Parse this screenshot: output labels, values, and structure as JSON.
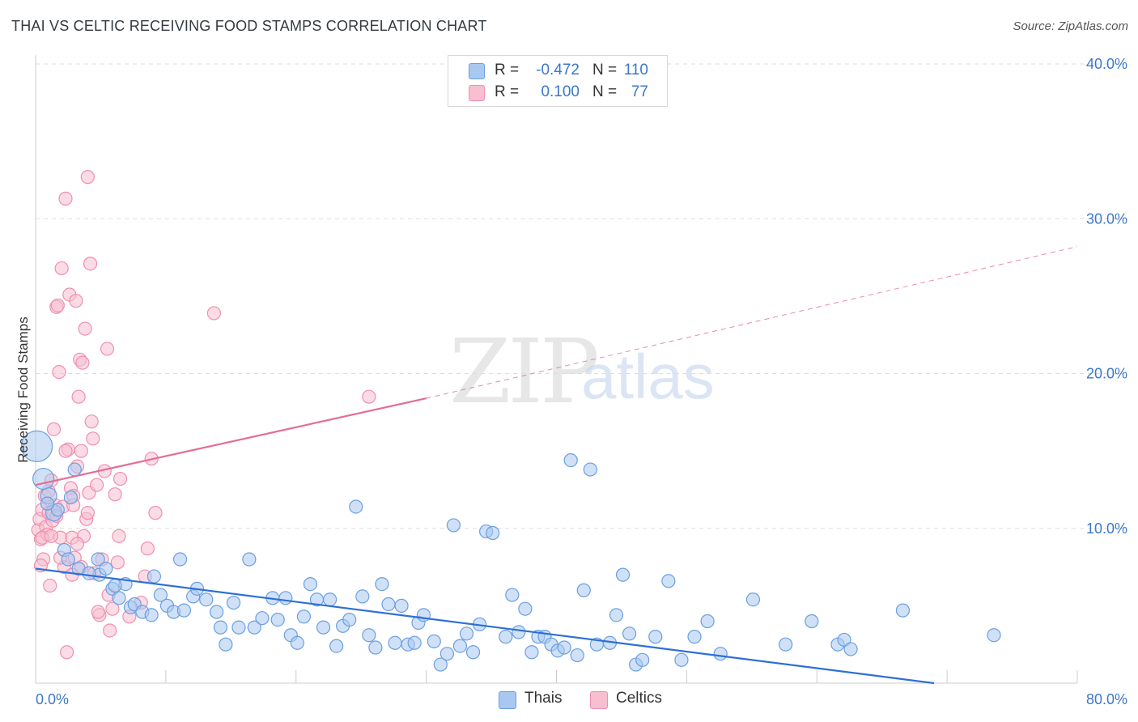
{
  "title": "THAI VS CELTIC RECEIVING FOOD STAMPS CORRELATION CHART",
  "source": "Source: ZipAtlas.com",
  "watermark": {
    "zip": "ZIP",
    "atlas": "atlas"
  },
  "legend": {
    "rows": [
      {
        "r_label": "R =",
        "r_value": "-0.472",
        "n_label": "N =",
        "n_value": "110"
      },
      {
        "r_label": "R =",
        "r_value": "0.100",
        "n_label": "N =",
        "n_value": "77"
      }
    ]
  },
  "bottom_legend": [
    "Thais",
    "Celtics"
  ],
  "colors": {
    "thais_fill": "#a9c8f0",
    "thais_stroke": "#6a9fe0",
    "thais_line": "#2e6fd6",
    "celtics_fill": "#f7bfd0",
    "celtics_stroke": "#ef8fb0",
    "celtics_line": "#e36d96",
    "tick_text": "#3b78cc",
    "grid": "#dddddd"
  },
  "chart_data": {
    "type": "scatter",
    "title": "THAI VS CELTIC RECEIVING FOOD STAMPS CORRELATION CHART",
    "xlabel": "",
    "ylabel": "Receiving Food Stamps",
    "xlim": [
      0,
      80
    ],
    "ylim": [
      0,
      40
    ],
    "x_tick_labels": [
      "0.0%",
      "80.0%"
    ],
    "y_tick_labels": [
      "10.0%",
      "20.0%",
      "30.0%",
      "40.0%"
    ],
    "y_ticks": [
      10,
      20,
      30,
      40
    ],
    "grid": true,
    "legend_position": "top-center",
    "series": [
      {
        "name": "Thais",
        "r": -0.472,
        "n": 110,
        "trend": {
          "x0": 0,
          "y0": 7.4,
          "x1": 69,
          "y1": 0.0,
          "dashed_after": null
        },
        "points": [
          [
            0.1,
            15.3
          ],
          [
            0.6,
            13.2
          ],
          [
            1.0,
            12.1
          ],
          [
            1.4,
            11.0
          ],
          [
            3.0,
            13.8
          ],
          [
            1.7,
            11.2
          ],
          [
            2.2,
            8.6
          ],
          [
            2.5,
            8.0
          ],
          [
            3.3,
            7.4
          ],
          [
            4.8,
            8.0
          ],
          [
            4.9,
            7.0
          ],
          [
            5.4,
            7.4
          ],
          [
            5.9,
            6.1
          ],
          [
            6.4,
            5.5
          ],
          [
            6.9,
            6.4
          ],
          [
            7.3,
            4.9
          ],
          [
            7.6,
            5.1
          ],
          [
            8.2,
            4.6
          ],
          [
            9.1,
            6.9
          ],
          [
            9.6,
            5.7
          ],
          [
            10.1,
            5.0
          ],
          [
            10.6,
            4.6
          ],
          [
            11.1,
            8.0
          ],
          [
            11.4,
            4.7
          ],
          [
            12.1,
            5.6
          ],
          [
            12.4,
            6.1
          ],
          [
            13.1,
            5.4
          ],
          [
            13.9,
            4.6
          ],
          [
            14.2,
            3.6
          ],
          [
            14.6,
            2.5
          ],
          [
            15.2,
            5.2
          ],
          [
            15.6,
            3.6
          ],
          [
            16.4,
            8.0
          ],
          [
            16.8,
            3.6
          ],
          [
            17.4,
            4.2
          ],
          [
            18.2,
            5.5
          ],
          [
            18.6,
            4.1
          ],
          [
            19.2,
            5.5
          ],
          [
            19.6,
            3.1
          ],
          [
            20.1,
            2.6
          ],
          [
            20.6,
            4.3
          ],
          [
            21.1,
            6.4
          ],
          [
            21.6,
            5.4
          ],
          [
            22.1,
            3.6
          ],
          [
            22.6,
            5.4
          ],
          [
            23.1,
            2.4
          ],
          [
            23.6,
            3.7
          ],
          [
            24.1,
            4.1
          ],
          [
            24.6,
            11.4
          ],
          [
            25.1,
            5.6
          ],
          [
            25.6,
            3.1
          ],
          [
            26.1,
            2.3
          ],
          [
            26.6,
            6.4
          ],
          [
            27.1,
            5.1
          ],
          [
            27.6,
            2.6
          ],
          [
            28.1,
            5.0
          ],
          [
            28.6,
            2.5
          ],
          [
            29.1,
            2.6
          ],
          [
            29.4,
            3.9
          ],
          [
            29.8,
            4.4
          ],
          [
            30.6,
            2.7
          ],
          [
            31.1,
            1.2
          ],
          [
            31.6,
            1.9
          ],
          [
            32.1,
            10.2
          ],
          [
            32.6,
            2.4
          ],
          [
            33.1,
            3.2
          ],
          [
            33.6,
            2.0
          ],
          [
            34.1,
            3.8
          ],
          [
            34.6,
            9.8
          ],
          [
            35.1,
            9.7
          ],
          [
            36.1,
            3.0
          ],
          [
            36.6,
            5.7
          ],
          [
            37.1,
            3.3
          ],
          [
            37.6,
            4.8
          ],
          [
            38.1,
            2.0
          ],
          [
            38.6,
            3.0
          ],
          [
            39.1,
            3.0
          ],
          [
            39.6,
            2.5
          ],
          [
            40.1,
            2.1
          ],
          [
            40.6,
            2.3
          ],
          [
            41.1,
            14.4
          ],
          [
            41.6,
            1.8
          ],
          [
            42.1,
            6.0
          ],
          [
            42.6,
            13.8
          ],
          [
            43.1,
            2.5
          ],
          [
            44.1,
            2.6
          ],
          [
            44.6,
            4.4
          ],
          [
            45.1,
            7.0
          ],
          [
            45.6,
            3.2
          ],
          [
            46.1,
            1.2
          ],
          [
            46.6,
            1.5
          ],
          [
            47.6,
            3.0
          ],
          [
            48.6,
            6.6
          ],
          [
            49.6,
            1.5
          ],
          [
            50.6,
            3.0
          ],
          [
            51.6,
            4.0
          ],
          [
            52.6,
            1.9
          ],
          [
            55.1,
            5.4
          ],
          [
            57.6,
            2.5
          ],
          [
            59.6,
            4.0
          ],
          [
            61.6,
            2.5
          ],
          [
            62.1,
            2.8
          ],
          [
            62.6,
            2.2
          ],
          [
            66.6,
            4.7
          ],
          [
            73.6,
            3.1
          ],
          [
            0.9,
            11.6
          ],
          [
            2.7,
            12.0
          ],
          [
            4.1,
            7.1
          ],
          [
            6.1,
            6.3
          ],
          [
            8.9,
            4.4
          ]
        ]
      },
      {
        "name": "Celtics",
        "r": 0.1,
        "n": 77,
        "trend": {
          "x0": 0,
          "y0": 12.8,
          "x1": 30,
          "y1": 18.4,
          "dashed_to_x": 80,
          "dashed_to_y": 28.2
        },
        "points": [
          [
            0.2,
            9.9
          ],
          [
            0.3,
            10.6
          ],
          [
            0.4,
            9.3
          ],
          [
            0.5,
            11.2
          ],
          [
            0.6,
            8.0
          ],
          [
            0.7,
            12.1
          ],
          [
            0.8,
            10.1
          ],
          [
            0.9,
            9.6
          ],
          [
            1.0,
            12.4
          ],
          [
            1.1,
            6.3
          ],
          [
            1.2,
            13.1
          ],
          [
            1.3,
            10.5
          ],
          [
            1.4,
            16.4
          ],
          [
            1.5,
            11.5
          ],
          [
            1.6,
            24.3
          ],
          [
            1.7,
            24.4
          ],
          [
            1.8,
            20.1
          ],
          [
            1.9,
            9.4
          ],
          [
            2.0,
            26.8
          ],
          [
            2.1,
            11.4
          ],
          [
            2.2,
            7.5
          ],
          [
            2.3,
            31.3
          ],
          [
            2.4,
            2.0
          ],
          [
            2.5,
            15.1
          ],
          [
            2.6,
            25.1
          ],
          [
            2.7,
            12.6
          ],
          [
            2.8,
            9.4
          ],
          [
            2.9,
            12.1
          ],
          [
            3.0,
            8.1
          ],
          [
            3.1,
            24.7
          ],
          [
            3.2,
            14.0
          ],
          [
            3.3,
            18.5
          ],
          [
            3.4,
            20.9
          ],
          [
            3.5,
            7.5
          ],
          [
            3.6,
            20.7
          ],
          [
            3.7,
            9.5
          ],
          [
            3.8,
            22.9
          ],
          [
            3.9,
            10.6
          ],
          [
            4.0,
            11.0
          ],
          [
            4.1,
            12.3
          ],
          [
            4.2,
            27.1
          ],
          [
            4.3,
            16.9
          ],
          [
            4.4,
            15.8
          ],
          [
            4.5,
            7.1
          ],
          [
            4.7,
            12.8
          ],
          [
            4.9,
            4.4
          ],
          [
            5.1,
            8.0
          ],
          [
            5.3,
            13.7
          ],
          [
            5.5,
            21.6
          ],
          [
            5.6,
            5.7
          ],
          [
            5.7,
            3.4
          ],
          [
            5.9,
            4.8
          ],
          [
            6.1,
            12.2
          ],
          [
            6.3,
            7.8
          ],
          [
            6.4,
            9.5
          ],
          [
            6.5,
            13.2
          ],
          [
            4.0,
            32.7
          ],
          [
            7.2,
            4.3
          ],
          [
            8.1,
            5.2
          ],
          [
            8.4,
            6.9
          ],
          [
            8.6,
            8.7
          ],
          [
            8.9,
            14.5
          ],
          [
            9.2,
            11.0
          ],
          [
            13.7,
            23.9
          ],
          [
            25.6,
            18.5
          ],
          [
            0.4,
            7.6
          ],
          [
            1.0,
            11.0
          ],
          [
            1.9,
            8.1
          ],
          [
            2.8,
            7.0
          ],
          [
            3.2,
            9.0
          ],
          [
            0.5,
            9.4
          ],
          [
            1.6,
            10.8
          ],
          [
            2.3,
            15.0
          ],
          [
            3.5,
            15.0
          ],
          [
            4.8,
            4.6
          ],
          [
            1.2,
            9.5
          ],
          [
            2.9,
            11.5
          ]
        ]
      }
    ]
  }
}
